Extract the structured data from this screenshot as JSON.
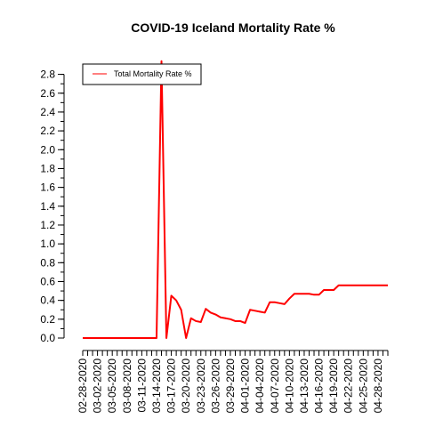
{
  "chart_data": {
    "type": "line",
    "title": "COVID-19 Iceland Mortality Rate %",
    "xlabel": "",
    "ylabel": "",
    "ylim": [
      0,
      2.9
    ],
    "y_ticks": [
      0.0,
      0.2,
      0.4,
      0.6,
      0.8,
      1.0,
      1.2,
      1.4,
      1.6,
      1.8,
      2.0,
      2.2,
      2.4,
      2.6,
      2.8
    ],
    "y_tick_labels": [
      "0.0",
      "0.2",
      "0.4",
      "0.6",
      "0.8",
      "1.0",
      "1.2",
      "1.4",
      "1.6",
      "1.8",
      "2.0",
      "2.2",
      "2.4",
      "2.6",
      "2.8"
    ],
    "x_tick_labels": [
      "02-28-2020",
      "03-02-2020",
      "03-05-2020",
      "03-08-2020",
      "03-11-2020",
      "03-14-2020",
      "03-17-2020",
      "03-20-2020",
      "03-23-2020",
      "03-26-2020",
      "03-29-2020",
      "04-01-2020",
      "04-04-2020",
      "04-07-2020",
      "04-10-2020",
      "04-13-2020",
      "04-16-2020",
      "04-19-2020",
      "04-22-2020",
      "04-25-2020",
      "04-28-2020"
    ],
    "x": [
      "02-28-2020",
      "02-29-2020",
      "03-01-2020",
      "03-02-2020",
      "03-03-2020",
      "03-04-2020",
      "03-05-2020",
      "03-06-2020",
      "03-07-2020",
      "03-08-2020",
      "03-09-2020",
      "03-10-2020",
      "03-11-2020",
      "03-12-2020",
      "03-13-2020",
      "03-14-2020",
      "03-15-2020",
      "03-16-2020",
      "03-17-2020",
      "03-18-2020",
      "03-19-2020",
      "03-20-2020",
      "03-21-2020",
      "03-22-2020",
      "03-23-2020",
      "03-24-2020",
      "03-25-2020",
      "03-26-2020",
      "03-27-2020",
      "03-28-2020",
      "03-29-2020",
      "03-30-2020",
      "03-31-2020",
      "04-01-2020",
      "04-02-2020",
      "04-03-2020",
      "04-04-2020",
      "04-05-2020",
      "04-06-2020",
      "04-07-2020",
      "04-08-2020",
      "04-09-2020",
      "04-10-2020",
      "04-11-2020",
      "04-12-2020",
      "04-13-2020",
      "04-14-2020",
      "04-15-2020",
      "04-16-2020",
      "04-17-2020",
      "04-18-2020",
      "04-19-2020",
      "04-20-2020",
      "04-21-2020",
      "04-22-2020",
      "04-23-2020",
      "04-24-2020",
      "04-25-2020",
      "04-26-2020",
      "04-27-2020",
      "04-28-2020",
      "04-29-2020",
      "04-30-2020"
    ],
    "series": [
      {
        "name": "Total Mortality Rate %",
        "color": "#ff0000",
        "values": [
          0,
          0,
          0,
          0,
          0,
          0,
          0,
          0,
          0,
          0,
          0,
          0,
          0,
          0,
          0,
          0,
          2.94,
          0,
          0.45,
          0.4,
          0.3,
          0,
          0.21,
          0.18,
          0.17,
          0.31,
          0.27,
          0.25,
          0.22,
          0.21,
          0.2,
          0.18,
          0.18,
          0.16,
          0.3,
          0.29,
          0.28,
          0.27,
          0.38,
          0.38,
          0.37,
          0.36,
          0.42,
          0.47,
          0.47,
          0.47,
          0.47,
          0.46,
          0.46,
          0.51,
          0.51,
          0.51,
          0.56,
          0.56,
          0.56,
          0.56,
          0.56,
          0.56,
          0.56,
          0.56,
          0.56,
          0.56,
          0.56
        ]
      }
    ],
    "grid": false,
    "legend_position": "top-left"
  }
}
